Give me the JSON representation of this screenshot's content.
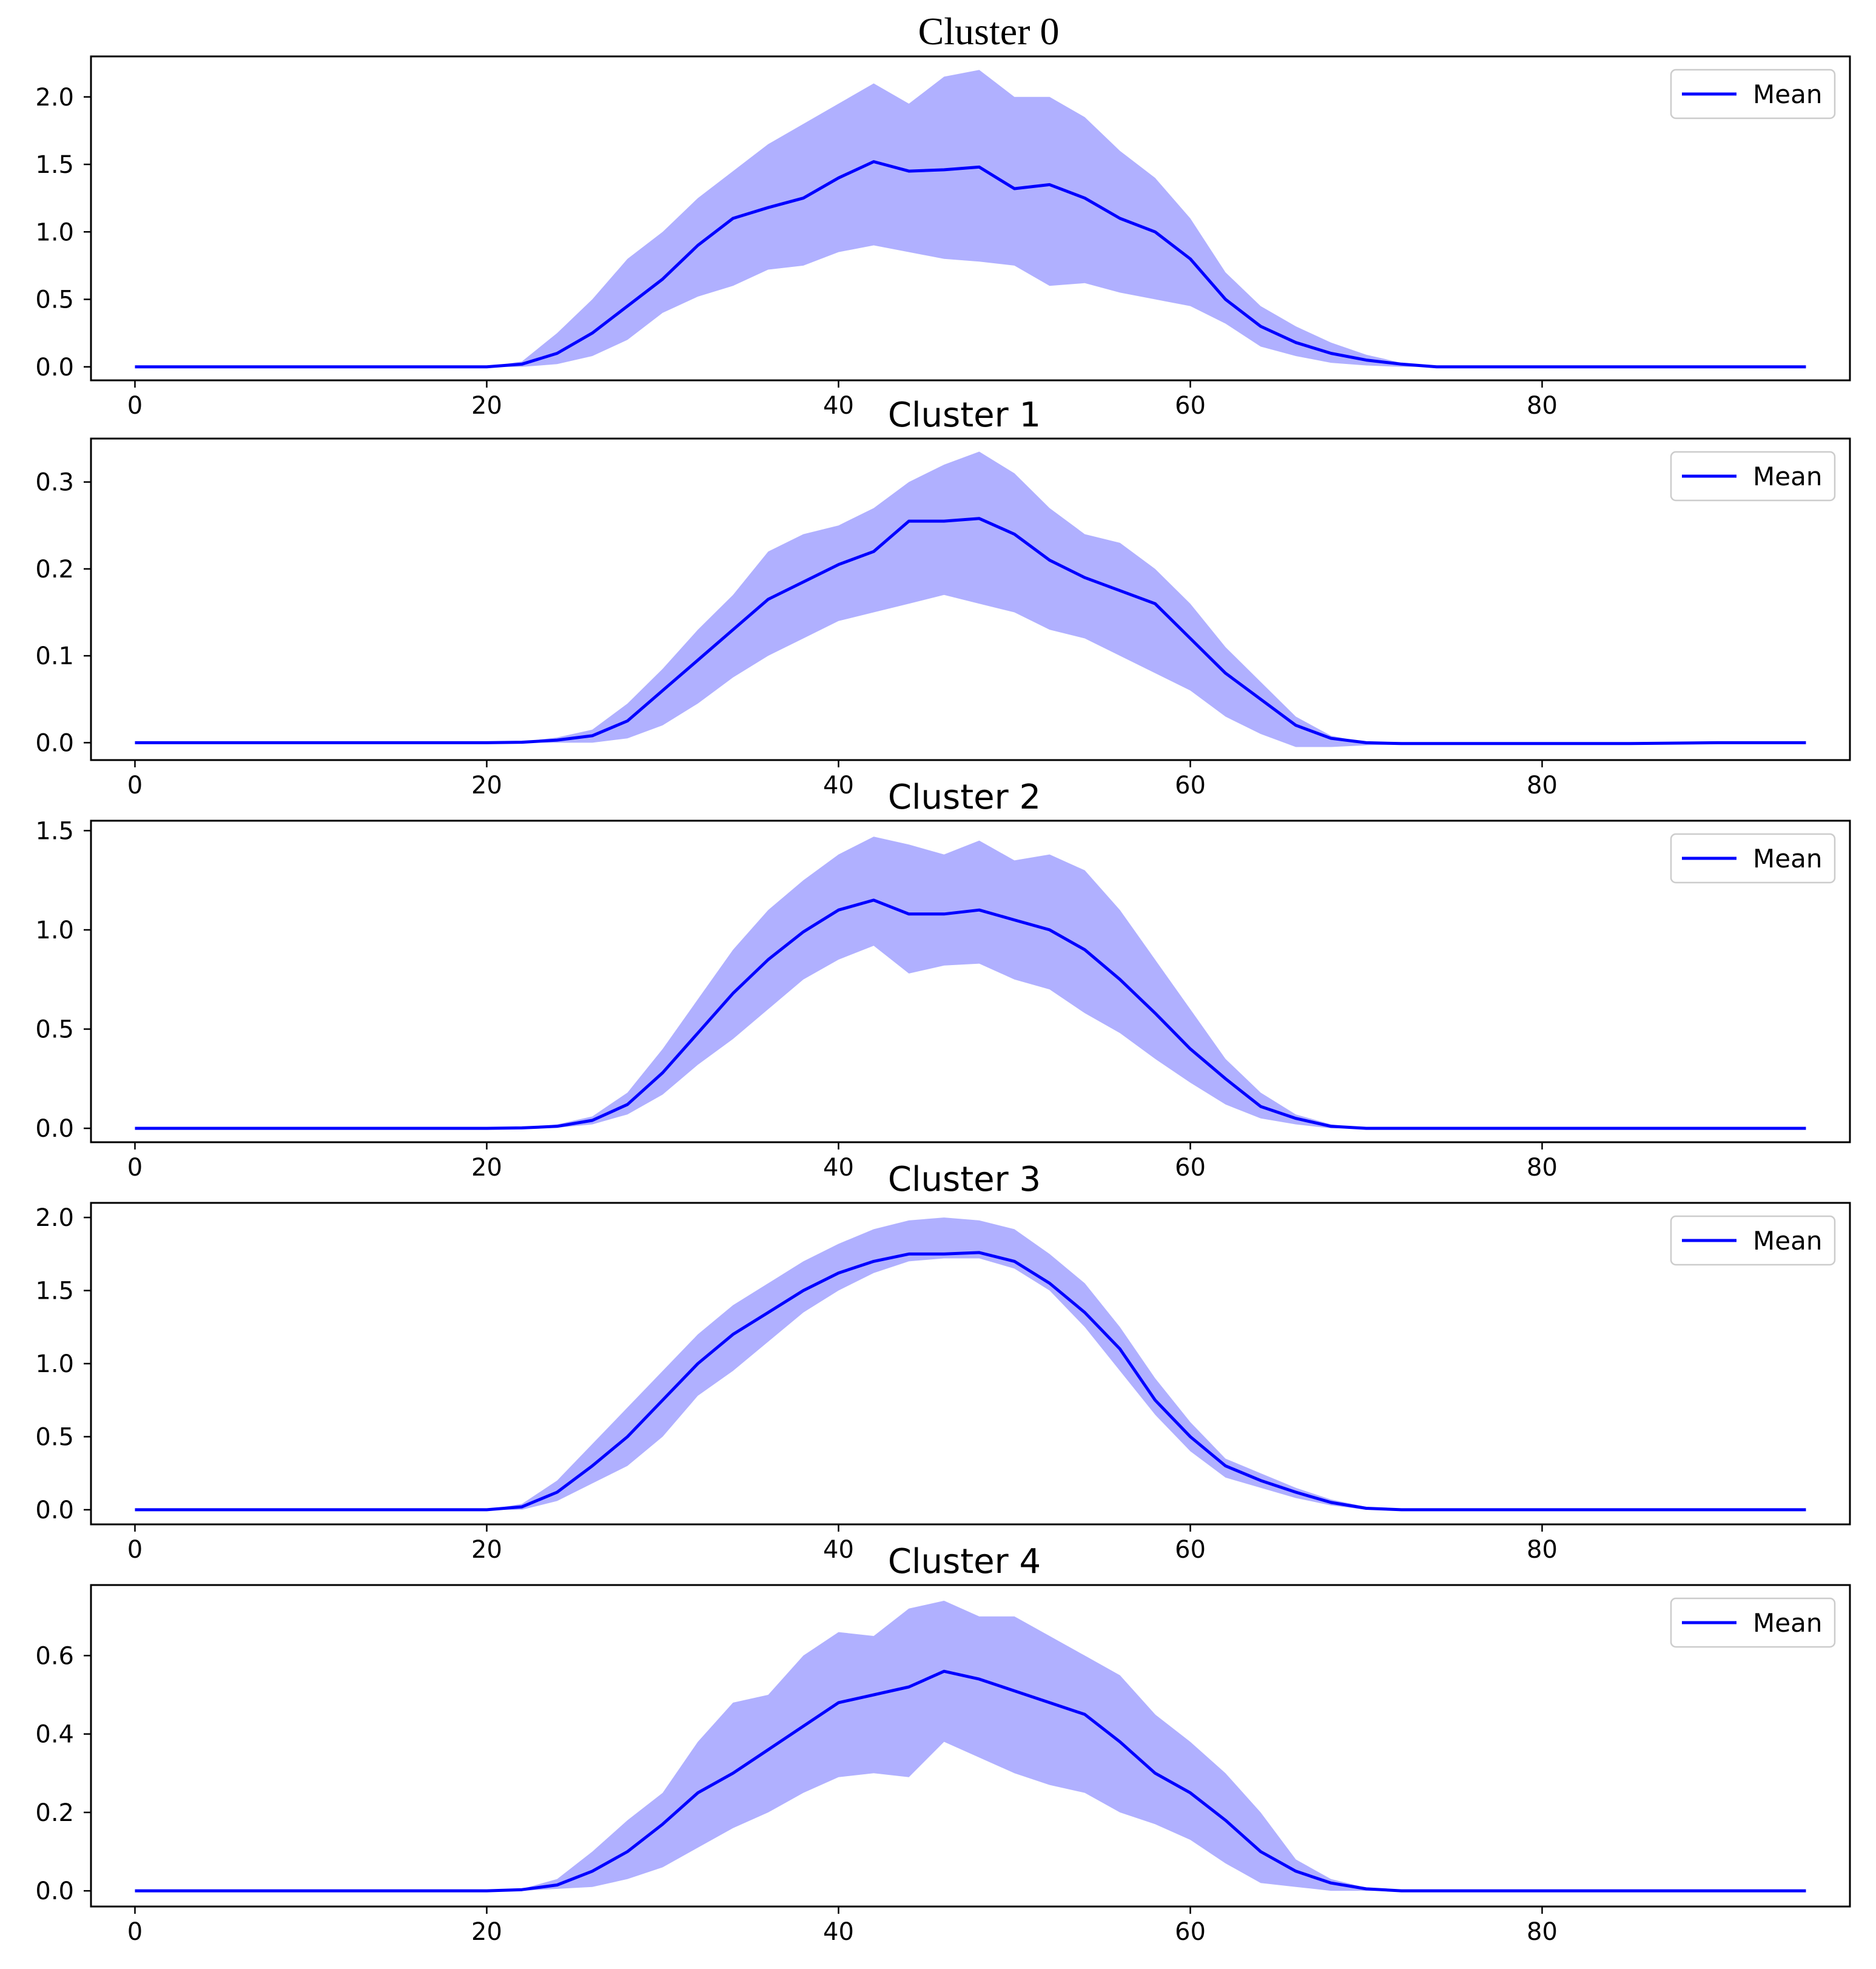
{
  "chart_data": [
    {
      "type": "line",
      "title": "Cluster 0",
      "xlim": [
        -2.5,
        97.5
      ],
      "ylim": [
        -0.1,
        2.3
      ],
      "xticks": [
        0,
        20,
        40,
        60,
        80
      ],
      "xtick_labels": [
        "0",
        "20",
        "40",
        "60",
        "80"
      ],
      "yticks": [
        0.0,
        0.5,
        1.0,
        1.5,
        2.0
      ],
      "ytick_labels": [
        "0.0",
        "0.5",
        "1.0",
        "1.5",
        "2.0"
      ],
      "legend": {
        "label": "Mean",
        "location": "upper right"
      },
      "colors": {
        "line": "#0000ff",
        "band": "#7b7bff"
      },
      "x": [
        0,
        5,
        10,
        15,
        20,
        22,
        24,
        26,
        28,
        30,
        32,
        34,
        36,
        38,
        40,
        42,
        44,
        46,
        48,
        50,
        52,
        54,
        56,
        58,
        60,
        62,
        64,
        66,
        68,
        70,
        72,
        74,
        76,
        80,
        85,
        90,
        95
      ],
      "mean": [
        0,
        0,
        0,
        0,
        0,
        0.02,
        0.1,
        0.25,
        0.45,
        0.65,
        0.9,
        1.1,
        1.18,
        1.25,
        1.4,
        1.52,
        1.45,
        1.46,
        1.48,
        1.32,
        1.35,
        1.25,
        1.1,
        1.0,
        0.8,
        0.5,
        0.3,
        0.18,
        0.1,
        0.05,
        0.02,
        0,
        0,
        0,
        0,
        0,
        0
      ],
      "upper": [
        0,
        0,
        0,
        0,
        0,
        0.04,
        0.25,
        0.5,
        0.8,
        1.0,
        1.25,
        1.45,
        1.65,
        1.8,
        1.95,
        2.1,
        1.95,
        2.15,
        2.2,
        2.0,
        2.0,
        1.85,
        1.6,
        1.4,
        1.1,
        0.7,
        0.45,
        0.3,
        0.18,
        0.09,
        0.03,
        0,
        0,
        0,
        0,
        0,
        0
      ],
      "lower": [
        0,
        0,
        0,
        0,
        0,
        0.0,
        0.02,
        0.08,
        0.2,
        0.4,
        0.52,
        0.6,
        0.72,
        0.75,
        0.85,
        0.9,
        0.85,
        0.8,
        0.78,
        0.75,
        0.6,
        0.62,
        0.55,
        0.5,
        0.45,
        0.32,
        0.15,
        0.08,
        0.03,
        0.01,
        0.0,
        0,
        0,
        0,
        0,
        0,
        0
      ]
    },
    {
      "type": "line",
      "title": "Cluster 1",
      "xlim": [
        -2.5,
        97.5
      ],
      "ylim": [
        -0.02,
        0.35
      ],
      "xticks": [
        0,
        20,
        40,
        60,
        80
      ],
      "xtick_labels": [
        "0",
        "20",
        "40",
        "60",
        "80"
      ],
      "yticks": [
        0.0,
        0.1,
        0.2,
        0.3
      ],
      "ytick_labels": [
        "0.0",
        "0.1",
        "0.2",
        "0.3"
      ],
      "legend": {
        "label": "Mean",
        "location": "upper right"
      },
      "colors": {
        "line": "#0000ff",
        "band": "#7b7bff"
      },
      "x": [
        0,
        5,
        10,
        15,
        20,
        22,
        24,
        26,
        28,
        30,
        32,
        34,
        36,
        38,
        40,
        42,
        44,
        46,
        48,
        50,
        52,
        54,
        56,
        58,
        60,
        62,
        64,
        66,
        68,
        70,
        72,
        74,
        76,
        80,
        85,
        90,
        95
      ],
      "mean": [
        0,
        0,
        0,
        0,
        0,
        0.0005,
        0.003,
        0.008,
        0.025,
        0.06,
        0.095,
        0.13,
        0.165,
        0.185,
        0.205,
        0.22,
        0.255,
        0.255,
        0.258,
        0.24,
        0.21,
        0.19,
        0.175,
        0.16,
        0.12,
        0.08,
        0.05,
        0.02,
        0.005,
        0.0,
        -0.001,
        -0.001,
        -0.001,
        -0.001,
        -0.001,
        0.0,
        0.0
      ],
      "upper": [
        0,
        0,
        0,
        0,
        0,
        0.001,
        0.006,
        0.015,
        0.045,
        0.085,
        0.13,
        0.17,
        0.22,
        0.24,
        0.25,
        0.27,
        0.3,
        0.32,
        0.335,
        0.31,
        0.27,
        0.24,
        0.23,
        0.2,
        0.16,
        0.11,
        0.07,
        0.03,
        0.008,
        0.0,
        -0.001,
        -0.001,
        -0.001,
        -0.001,
        -0.001,
        0.0,
        0.0
      ],
      "lower": [
        0,
        0,
        0,
        0,
        0,
        0.0,
        0.0,
        0.0,
        0.005,
        0.02,
        0.045,
        0.075,
        0.1,
        0.12,
        0.14,
        0.15,
        0.16,
        0.17,
        0.16,
        0.15,
        0.13,
        0.12,
        0.1,
        0.08,
        0.06,
        0.03,
        0.01,
        -0.005,
        -0.005,
        -0.003,
        -0.002,
        -0.001,
        -0.001,
        -0.001,
        -0.001,
        0.0,
        0.0
      ]
    },
    {
      "type": "line",
      "title": "Cluster 2",
      "xlim": [
        -2.5,
        97.5
      ],
      "ylim": [
        -0.07,
        1.55
      ],
      "xticks": [
        0,
        20,
        40,
        60,
        80
      ],
      "xtick_labels": [
        "0",
        "20",
        "40",
        "60",
        "80"
      ],
      "yticks": [
        0.0,
        0.5,
        1.0,
        1.5
      ],
      "ytick_labels": [
        "0.0",
        "0.5",
        "1.0",
        "1.5"
      ],
      "legend": {
        "label": "Mean",
        "location": "upper right"
      },
      "colors": {
        "line": "#0000ff",
        "band": "#7b7bff"
      },
      "x": [
        0,
        5,
        10,
        15,
        20,
        22,
        24,
        26,
        28,
        30,
        32,
        34,
        36,
        38,
        40,
        42,
        44,
        46,
        48,
        50,
        52,
        54,
        56,
        58,
        60,
        62,
        64,
        66,
        68,
        70,
        72,
        74,
        76,
        80,
        85,
        90,
        95
      ],
      "mean": [
        0,
        0,
        0,
        0,
        0,
        0.002,
        0.01,
        0.04,
        0.12,
        0.28,
        0.48,
        0.68,
        0.85,
        0.99,
        1.1,
        1.15,
        1.08,
        1.08,
        1.1,
        1.05,
        1.0,
        0.9,
        0.75,
        0.58,
        0.4,
        0.25,
        0.11,
        0.05,
        0.01,
        0.0,
        0,
        0,
        0,
        0,
        0,
        0,
        0
      ],
      "upper": [
        0,
        0,
        0,
        0,
        0,
        0.003,
        0.02,
        0.06,
        0.18,
        0.4,
        0.65,
        0.9,
        1.1,
        1.25,
        1.38,
        1.47,
        1.43,
        1.38,
        1.45,
        1.35,
        1.38,
        1.3,
        1.1,
        0.85,
        0.6,
        0.35,
        0.18,
        0.07,
        0.02,
        0.0,
        0,
        0,
        0,
        0,
        0,
        0,
        0
      ],
      "lower": [
        0,
        0,
        0,
        0,
        0,
        0.0,
        0.003,
        0.02,
        0.07,
        0.17,
        0.32,
        0.45,
        0.6,
        0.75,
        0.85,
        0.92,
        0.78,
        0.82,
        0.83,
        0.75,
        0.7,
        0.58,
        0.48,
        0.35,
        0.23,
        0.12,
        0.05,
        0.02,
        0.0,
        0.0,
        0,
        0,
        0,
        0,
        0,
        0,
        0
      ]
    },
    {
      "type": "line",
      "title": "Cluster 3",
      "xlim": [
        -2.5,
        97.5
      ],
      "ylim": [
        -0.1,
        2.1
      ],
      "xticks": [
        0,
        20,
        40,
        60,
        80
      ],
      "xtick_labels": [
        "0",
        "20",
        "40",
        "60",
        "80"
      ],
      "yticks": [
        0.0,
        0.5,
        1.0,
        1.5,
        2.0
      ],
      "ytick_labels": [
        "0.0",
        "0.5",
        "1.0",
        "1.5",
        "2.0"
      ],
      "legend": {
        "label": "Mean",
        "location": "upper right"
      },
      "colors": {
        "line": "#0000ff",
        "band": "#7b7bff"
      },
      "x": [
        0,
        5,
        10,
        15,
        20,
        22,
        24,
        26,
        28,
        30,
        32,
        34,
        36,
        38,
        40,
        42,
        44,
        46,
        48,
        50,
        52,
        54,
        56,
        58,
        60,
        62,
        64,
        66,
        68,
        70,
        72,
        74,
        76,
        80,
        85,
        90,
        95
      ],
      "mean": [
        0,
        0,
        0,
        0,
        0,
        0.02,
        0.12,
        0.3,
        0.5,
        0.75,
        1.0,
        1.2,
        1.35,
        1.5,
        1.62,
        1.7,
        1.75,
        1.75,
        1.76,
        1.7,
        1.55,
        1.35,
        1.1,
        0.75,
        0.5,
        0.3,
        0.2,
        0.12,
        0.05,
        0.01,
        0.0,
        0,
        0,
        0,
        0,
        0,
        0
      ],
      "upper": [
        0,
        0,
        0,
        0,
        0,
        0.04,
        0.2,
        0.45,
        0.7,
        0.95,
        1.2,
        1.4,
        1.55,
        1.7,
        1.82,
        1.92,
        1.98,
        2.0,
        1.98,
        1.92,
        1.75,
        1.55,
        1.25,
        0.9,
        0.6,
        0.35,
        0.25,
        0.15,
        0.07,
        0.02,
        0.0,
        0,
        0,
        0,
        0,
        0,
        0
      ],
      "lower": [
        0,
        0,
        0,
        0,
        0,
        0.0,
        0.06,
        0.18,
        0.3,
        0.5,
        0.78,
        0.95,
        1.15,
        1.35,
        1.5,
        1.62,
        1.7,
        1.72,
        1.72,
        1.65,
        1.5,
        1.25,
        0.95,
        0.65,
        0.4,
        0.22,
        0.15,
        0.08,
        0.03,
        0.0,
        0.0,
        0,
        0,
        0,
        0,
        0,
        0
      ]
    },
    {
      "type": "line",
      "title": "Cluster 4",
      "xlim": [
        -2.5,
        97.5
      ],
      "ylim": [
        -0.04,
        0.78
      ],
      "xticks": [
        0,
        20,
        40,
        60,
        80
      ],
      "xtick_labels": [
        "0",
        "20",
        "40",
        "60",
        "80"
      ],
      "yticks": [
        0.0,
        0.2,
        0.4,
        0.6
      ],
      "ytick_labels": [
        "0.0",
        "0.2",
        "0.4",
        "0.6"
      ],
      "legend": {
        "label": "Mean",
        "location": "upper right"
      },
      "colors": {
        "line": "#0000ff",
        "band": "#7b7bff"
      },
      "x": [
        0,
        5,
        10,
        15,
        20,
        22,
        24,
        26,
        28,
        30,
        32,
        34,
        36,
        38,
        40,
        42,
        44,
        46,
        48,
        50,
        52,
        54,
        56,
        58,
        60,
        62,
        64,
        66,
        68,
        70,
        72,
        74,
        76,
        80,
        85,
        90,
        95
      ],
      "mean": [
        0,
        0,
        0,
        0,
        0,
        0.003,
        0.015,
        0.05,
        0.1,
        0.17,
        0.25,
        0.3,
        0.36,
        0.42,
        0.48,
        0.5,
        0.52,
        0.56,
        0.54,
        0.51,
        0.48,
        0.45,
        0.38,
        0.3,
        0.25,
        0.18,
        0.1,
        0.05,
        0.02,
        0.005,
        0.0,
        0,
        0,
        0,
        0,
        0,
        0
      ],
      "upper": [
        0,
        0,
        0,
        0,
        0,
        0.005,
        0.03,
        0.1,
        0.18,
        0.25,
        0.38,
        0.48,
        0.5,
        0.6,
        0.66,
        0.65,
        0.72,
        0.74,
        0.7,
        0.7,
        0.65,
        0.6,
        0.55,
        0.45,
        0.38,
        0.3,
        0.2,
        0.08,
        0.03,
        0.008,
        0.0,
        0,
        0,
        0,
        0,
        0,
        0
      ],
      "lower": [
        0,
        0,
        0,
        0,
        0,
        0.0,
        0.005,
        0.01,
        0.03,
        0.06,
        0.11,
        0.16,
        0.2,
        0.25,
        0.29,
        0.3,
        0.29,
        0.38,
        0.34,
        0.3,
        0.27,
        0.25,
        0.2,
        0.17,
        0.13,
        0.07,
        0.02,
        0.01,
        0.0,
        0.0,
        0.0,
        0,
        0,
        0,
        0,
        0,
        0
      ]
    }
  ]
}
